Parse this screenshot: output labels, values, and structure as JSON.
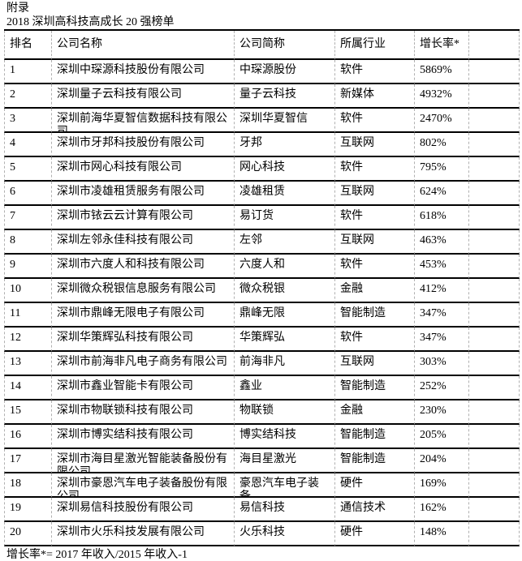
{
  "page": {
    "appendix_label": "附录",
    "title": "2018 深圳高科技高成长 20 强榜单",
    "footnote": "增长率*=  2017 年收入/2015 年收入-1"
  },
  "colors": {
    "text": "#000000",
    "row_border": "#000000",
    "column_border": "#b0b0b0",
    "background": "#ffffff"
  },
  "table": {
    "columns": [
      "排名",
      "公司名称",
      "公司简称",
      "所属行业",
      "增长率*"
    ],
    "rows": [
      {
        "rank": "1",
        "name": "深圳中琛源科技股份有限公司",
        "short_name": "中琛源股份",
        "industry": "软件",
        "growth": "5869%"
      },
      {
        "rank": "2",
        "name": "深圳量子云科技有限公司",
        "short_name": "量子云科技",
        "industry": "新媒体",
        "growth": "4932%"
      },
      {
        "rank": "3",
        "name": "深圳前海华夏智信数据科技有限公司",
        "short_name": "深圳华夏智信",
        "industry": "软件",
        "growth": "2470%"
      },
      {
        "rank": "4",
        "name": "深圳市牙邦科技股份有限公司",
        "short_name": "牙邦",
        "industry": "互联网",
        "growth": "802%"
      },
      {
        "rank": "5",
        "name": "深圳市网心科技有限公司",
        "short_name": "网心科技",
        "industry": "软件",
        "growth": "795%"
      },
      {
        "rank": "6",
        "name": "深圳市凌雄租赁服务有限公司",
        "short_name": "凌雄租赁",
        "industry": "互联网",
        "growth": "624%"
      },
      {
        "rank": "7",
        "name": "深圳市铱云云计算有限公司",
        "short_name": "易订货",
        "industry": "软件",
        "growth": "618%"
      },
      {
        "rank": "8",
        "name": "深圳左邻永佳科技有限公司",
        "short_name": "左邻",
        "industry": "互联网",
        "growth": "463%"
      },
      {
        "rank": "9",
        "name": "深圳市六度人和科技有限公司",
        "short_name": "六度人和",
        "industry": "软件",
        "growth": "453%"
      },
      {
        "rank": "10",
        "name": "深圳微众税银信息服务有限公司",
        "short_name": "微众税银",
        "industry": "金融",
        "growth": "412%"
      },
      {
        "rank": "11",
        "name": "深圳市鼎峰无限电子有限公司",
        "short_name": "鼎峰无限",
        "industry": "智能制造",
        "growth": "347%"
      },
      {
        "rank": "12",
        "name": "深圳华策辉弘科技有限公司",
        "short_name": "华策辉弘",
        "industry": "软件",
        "growth": "347%"
      },
      {
        "rank": "13",
        "name": "深圳市前海非凡电子商务有限公司",
        "short_name": "前海非凡",
        "industry": "互联网",
        "growth": "303%"
      },
      {
        "rank": "14",
        "name": "深圳市鑫业智能卡有限公司",
        "short_name": "鑫业",
        "industry": "智能制造",
        "growth": "252%"
      },
      {
        "rank": "15",
        "name": "深圳市物联锁科技有限公司",
        "short_name": "物联锁",
        "industry": "金融",
        "growth": "230%"
      },
      {
        "rank": "16",
        "name": "深圳市博实结科技有限公司",
        "short_name": "博实结科技",
        "industry": "智能制造",
        "growth": "205%"
      },
      {
        "rank": "17",
        "name": "深圳市海目星激光智能装备股份有限公司",
        "short_name": "海目星激光",
        "industry": "智能制造",
        "growth": "204%"
      },
      {
        "rank": "18",
        "name": "深圳市豪恩汽车电子装备股份有限公司",
        "short_name": "豪恩汽车电子装备",
        "industry": "硬件",
        "growth": "169%"
      },
      {
        "rank": "19",
        "name": "深圳易信科技股份有限公司",
        "short_name": "易信科技",
        "industry": "通信技术",
        "growth": "162%"
      },
      {
        "rank": "20",
        "name": "深圳市火乐科技发展有限公司",
        "short_name": "火乐科技",
        "industry": "硬件",
        "growth": "148%"
      }
    ]
  }
}
